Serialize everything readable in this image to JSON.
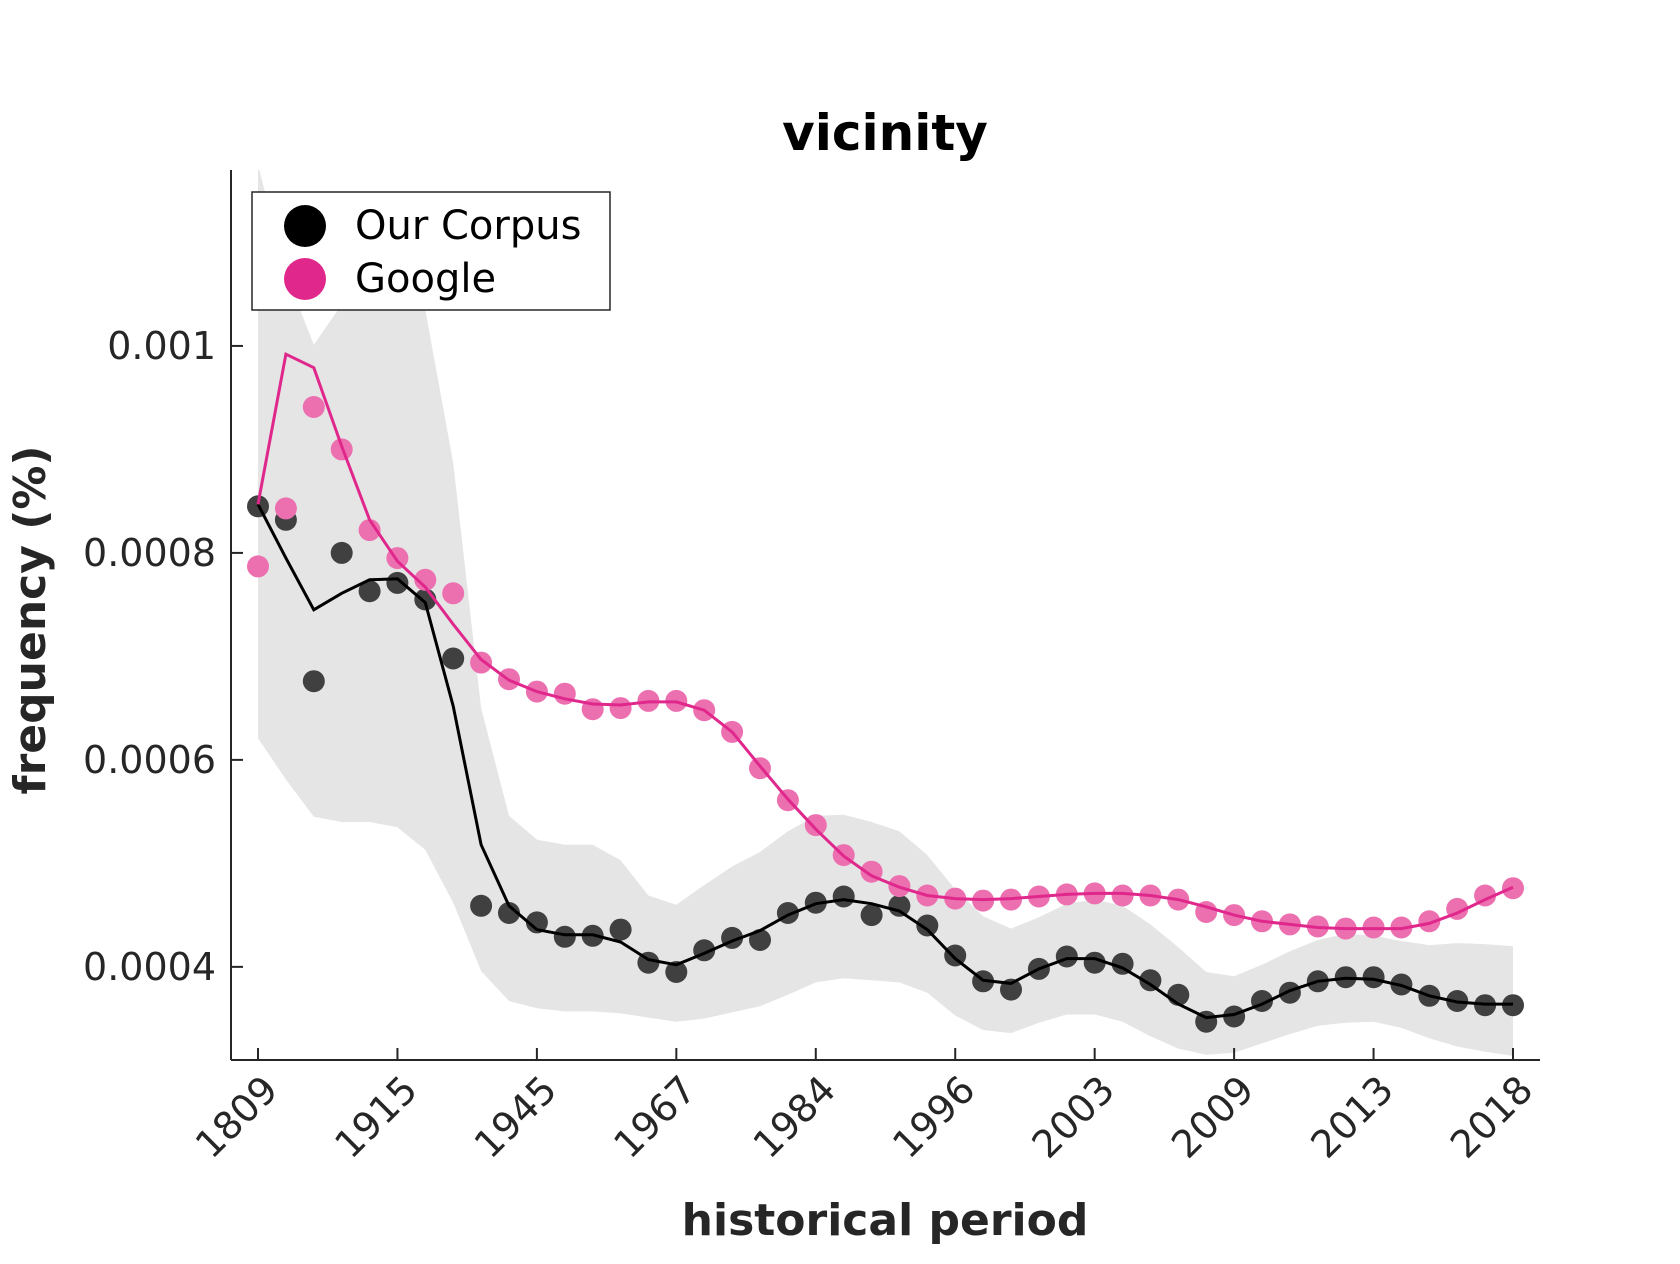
{
  "chart_data": {
    "type": "line",
    "title": "vicinity",
    "xlabel": "historical period",
    "ylabel": "frequency (%)",
    "ylim": [
      0.00031,
      0.00117
    ],
    "yticks": [
      0.0004,
      0.0006,
      0.0008,
      0.001
    ],
    "ytick_labels": [
      "0.0004",
      "0.0006",
      "0.0008",
      "0.001"
    ],
    "x_index_range": [
      1,
      46
    ],
    "xticks": [
      1,
      6,
      11,
      16,
      21,
      26,
      31,
      36,
      41,
      46
    ],
    "xtick_labels": [
      "1809",
      "1915",
      "1945",
      "1967",
      "1984",
      "1996",
      "2003",
      "2009",
      "2013",
      "2018"
    ],
    "grid": false,
    "legend_position": "top-left",
    "legend": [
      "Our Corpus",
      "Google"
    ],
    "colors": {
      "our_corpus": "#000000",
      "our_corpus_dots": "#404040",
      "google": "#e0288c",
      "google_dots": "#ec6fb0",
      "band": "#e5e5e5",
      "axis": "#262626"
    },
    "series": [
      {
        "name": "Our Corpus",
        "points": [
          0.000845,
          0.000832,
          0.000676,
          0.0008,
          0.000763,
          0.000771,
          0.000755,
          0.000698,
          0.000459,
          0.000452,
          0.000443,
          0.000429,
          0.00043,
          0.000436,
          0.000404,
          0.000395,
          0.000416,
          0.000428,
          0.000426,
          0.000452,
          0.000462,
          0.000468,
          0.00045,
          0.000459,
          0.00044,
          0.000411,
          0.000386,
          0.000378,
          0.000398,
          0.00041,
          0.000404,
          0.000403,
          0.000387,
          0.000373,
          0.000347,
          0.000352,
          0.000367,
          0.000375,
          0.000386,
          0.00039,
          0.00039,
          0.000383,
          0.000372,
          0.000367,
          0.000363,
          0.000363
        ],
        "line": [
          0.000847,
          0.000795,
          0.000745,
          0.000761,
          0.000774,
          0.000775,
          0.000752,
          0.000652,
          0.000518,
          0.000459,
          0.000436,
          0.000431,
          0.000431,
          0.000424,
          0.000407,
          0.000402,
          0.000413,
          0.000425,
          0.000435,
          0.00045,
          0.000461,
          0.000465,
          0.000461,
          0.000454,
          0.000436,
          0.000408,
          0.000387,
          0.000384,
          0.000398,
          0.000408,
          0.000408,
          0.000399,
          0.000383,
          0.000364,
          0.000351,
          0.000354,
          0.000364,
          0.000377,
          0.000386,
          0.000389,
          0.000388,
          0.000382,
          0.000372,
          0.000366,
          0.000364,
          0.000364
        ],
        "band_upper": [
          0.001175,
          0.00107,
          0.001001,
          0.00104,
          0.001102,
          0.001082,
          0.001035,
          0.000887,
          0.00065,
          0.000546,
          0.000523,
          0.000518,
          0.000518,
          0.000503,
          0.000469,
          0.00046,
          0.000479,
          0.000497,
          0.000511,
          0.000531,
          0.000546,
          0.000547,
          0.00054,
          0.000531,
          0.000508,
          0.000475,
          0.000449,
          0.000437,
          0.000448,
          0.000461,
          0.000465,
          0.000459,
          0.000441,
          0.000419,
          0.000395,
          0.000391,
          0.000402,
          0.000415,
          0.000426,
          0.000432,
          0.00043,
          0.000425,
          0.000421,
          0.000423,
          0.000422,
          0.00042
        ],
        "band_lower": [
          0.000621,
          0.000581,
          0.000545,
          0.00054,
          0.00054,
          0.000535,
          0.000513,
          0.000462,
          0.000396,
          0.000367,
          0.00036,
          0.000357,
          0.000357,
          0.000355,
          0.000351,
          0.000347,
          0.00035,
          0.000356,
          0.000362,
          0.000373,
          0.000385,
          0.000389,
          0.000387,
          0.000385,
          0.000375,
          0.000353,
          0.000339,
          0.000336,
          0.000346,
          0.000354,
          0.000354,
          0.000347,
          0.000333,
          0.000321,
          0.000315,
          0.000317,
          0.000326,
          0.000335,
          0.000343,
          0.000346,
          0.000347,
          0.000341,
          0.000331,
          0.000323,
          0.000318,
          0.000314
        ]
      },
      {
        "name": "Google",
        "points": [
          0.000787,
          0.000843,
          0.000941,
          0.0009,
          0.000822,
          0.000795,
          0.000774,
          0.000761,
          0.000694,
          0.000678,
          0.000666,
          0.000664,
          0.000649,
          0.00065,
          0.000657,
          0.000657,
          0.000648,
          0.000627,
          0.000592,
          0.000561,
          0.000537,
          0.000508,
          0.000492,
          0.000478,
          0.000469,
          0.000466,
          0.000464,
          0.000465,
          0.000468,
          0.00047,
          0.000471,
          0.000469,
          0.000469,
          0.000465,
          0.000453,
          0.00045,
          0.000444,
          0.000441,
          0.000439,
          0.000437,
          0.000438,
          0.000438,
          0.000444,
          0.000456,
          0.000469,
          0.000476
        ],
        "line": [
          0.000847,
          0.000992,
          0.000979,
          0.000903,
          0.000832,
          0.000792,
          0.000767,
          0.000731,
          0.000697,
          0.000677,
          0.000666,
          0.000659,
          0.000654,
          0.000653,
          0.000656,
          0.000656,
          0.000648,
          0.000627,
          0.000594,
          0.000562,
          0.000533,
          0.000507,
          0.000488,
          0.000477,
          0.000469,
          0.000466,
          0.000465,
          0.000466,
          0.000468,
          0.00047,
          0.000471,
          0.000471,
          0.000469,
          0.000465,
          0.000458,
          0.00045,
          0.000444,
          0.000441,
          0.000438,
          0.000437,
          0.000437,
          0.000437,
          0.000442,
          0.000452,
          0.000465,
          0.000477
        ]
      }
    ]
  }
}
